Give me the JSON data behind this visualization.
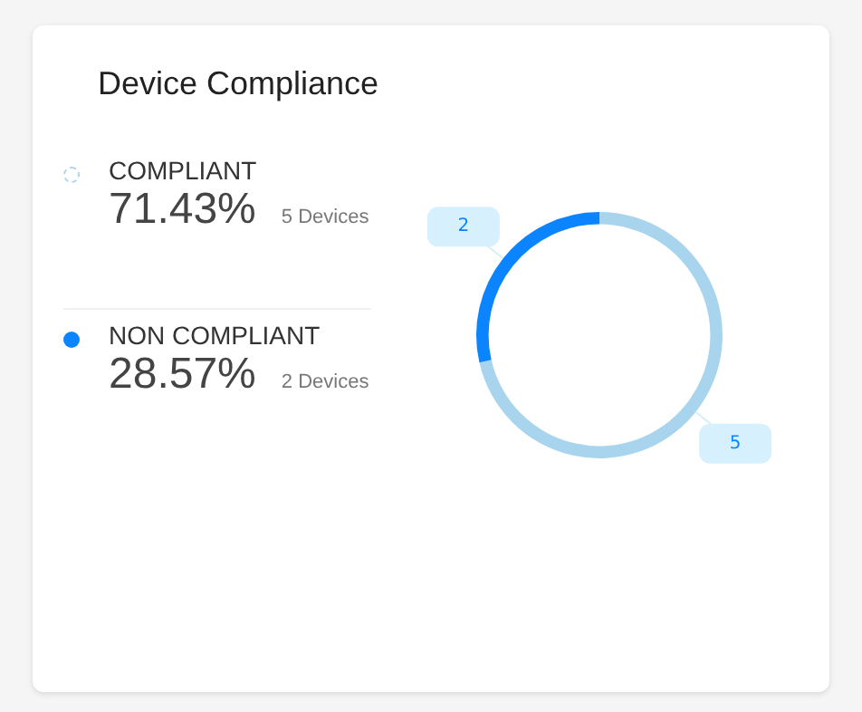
{
  "chart_data": {
    "type": "donut",
    "title": "Device Compliance",
    "categories": [
      "COMPLIANT",
      "NON COMPLIANT"
    ],
    "values": [
      5,
      2
    ],
    "colors": [
      "#a9d4ee",
      "#0a84ff"
    ],
    "data_labels": true,
    "legend": "left",
    "annotations": [
      "71.43%",
      "5 Devices",
      "28.57%",
      "2 Devices"
    ]
  }
}
